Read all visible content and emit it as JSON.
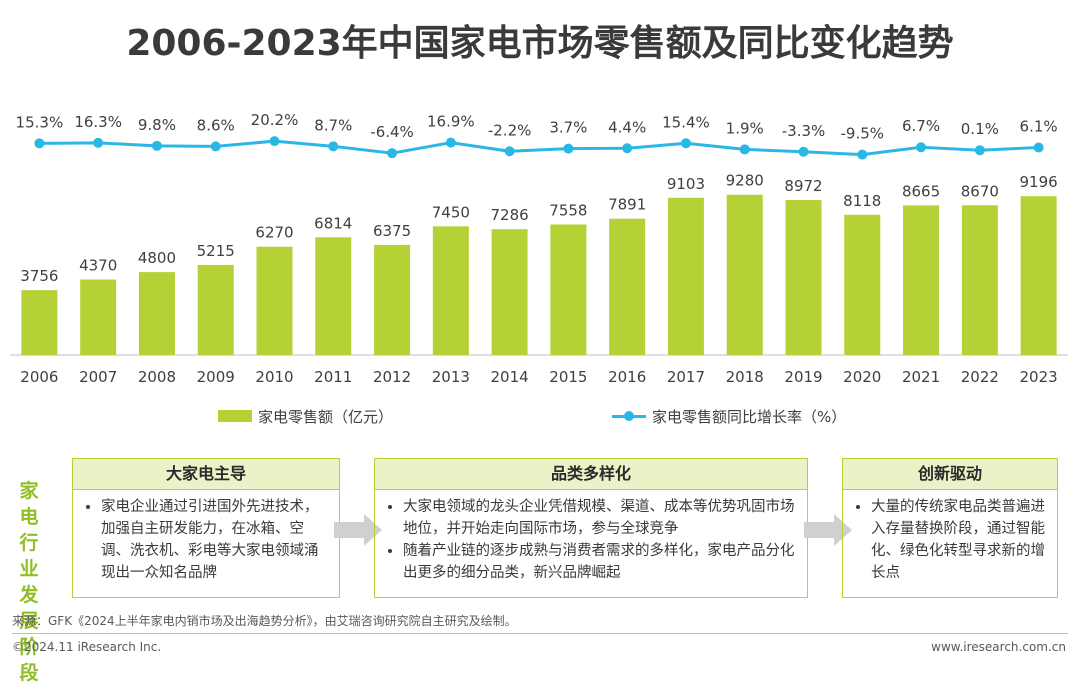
{
  "title": "2006-2023年中国家电市场零售额及同比变化趋势",
  "chart_data": {
    "type": "bar+line",
    "categories": [
      "2006",
      "2007",
      "2008",
      "2009",
      "2010",
      "2011",
      "2012",
      "2013",
      "2014",
      "2015",
      "2016",
      "2017",
      "2018",
      "2019",
      "2020",
      "2021",
      "2022",
      "2023"
    ],
    "series": [
      {
        "name": "家电零售额（亿元）",
        "type": "bar",
        "values": [
          3756,
          4370,
          4800,
          5215,
          6270,
          6814,
          6375,
          7450,
          7286,
          7558,
          7891,
          9103,
          9280,
          8972,
          8118,
          8665,
          8670,
          9196
        ],
        "color": "#b4d235"
      },
      {
        "name": "家电零售额同比增长率（%）",
        "type": "line",
        "values": [
          15.3,
          16.3,
          9.8,
          8.6,
          20.2,
          8.7,
          -6.4,
          16.9,
          -2.2,
          3.7,
          4.4,
          15.4,
          1.9,
          -3.3,
          -9.5,
          6.7,
          0.1,
          6.1
        ],
        "labels": [
          "15.3%",
          "16.3%",
          "9.8%",
          "8.6%",
          "20.2%",
          "8.7%",
          "-6.4%",
          "16.9%",
          "-2.2%",
          "3.7%",
          "4.4%",
          "15.4%",
          "1.9%",
          "-3.3%",
          "-9.5%",
          "6.7%",
          "0.1%",
          "6.1%"
        ],
        "color": "#2bb7e6"
      }
    ],
    "legend_position": "bottom",
    "grid": false
  },
  "legend": {
    "bar_label": "家电零售额（亿元）",
    "line_label": "家电零售额同比增长率（%）"
  },
  "stages": {
    "label": [
      "家电",
      "行业",
      "发展",
      "阶段"
    ],
    "items": [
      {
        "title": "大家电主导",
        "bullets": [
          "家电企业通过引进国外先进技术，加强自主研发能力，在冰箱、空调、洗衣机、彩电等大家电领域涌现出一众知名品牌"
        ]
      },
      {
        "title": "品类多样化",
        "bullets": [
          "大家电领域的龙头企业凭借规模、渠道、成本等优势巩固市场地位，并开始走向国际市场，参与全球竞争",
          "随着产业链的逐步成熟与消费者需求的多样化，家电产品分化出更多的细分品类，新兴品牌崛起"
        ]
      },
      {
        "title": "创新驱动",
        "bullets": [
          "大量的传统家电品类普遍进入存量替换阶段，通过智能化、绿色化转型寻求新的增长点"
        ]
      }
    ]
  },
  "footer": {
    "source": "来源：GFK《2024上半年家电内销市场及出海趋势分析》，由艾瑞咨询研究院自主研究及绘制。",
    "copyright": "©2024.11 iResearch Inc.",
    "website": "www.iresearch.com.cn"
  }
}
